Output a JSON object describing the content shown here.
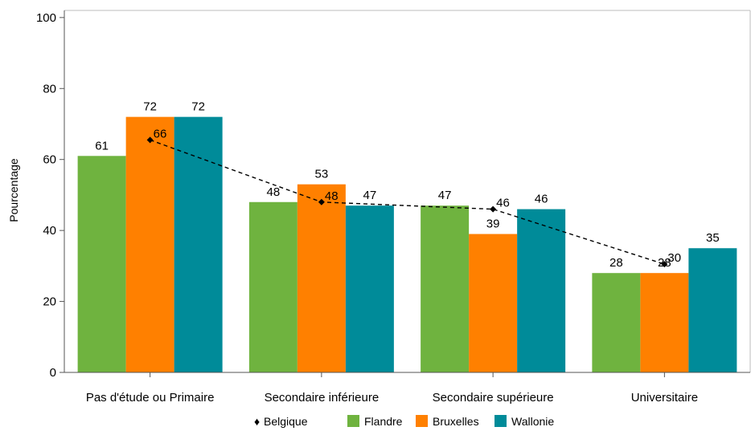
{
  "chart_data": {
    "type": "bar",
    "categories": [
      "Pas d'étude ou Primaire",
      "Secondaire inférieure",
      "Secondaire supérieure",
      "Universitaire"
    ],
    "series": [
      {
        "name": "Flandre",
        "color": "#6fb33f",
        "values": [
          61,
          48,
          47,
          28
        ],
        "labels": [
          "61",
          "48",
          "47",
          "28"
        ]
      },
      {
        "name": "Bruxelles",
        "color": "#ff8000",
        "values": [
          72,
          53,
          39,
          28
        ],
        "labels": [
          "72",
          "53",
          "39",
          "28"
        ]
      },
      {
        "name": "Wallonie",
        "color": "#008b99",
        "values": [
          72,
          47,
          46,
          35
        ],
        "labels": [
          "72",
          "47",
          "46",
          "35"
        ]
      }
    ],
    "line_series": {
      "name": "Belgique",
      "marker": "♦",
      "values": [
        65.5,
        48,
        46,
        30.5
      ],
      "labels": [
        "66",
        "48",
        "46",
        "30"
      ]
    },
    "ylabel": "Pourcentage",
    "ylim": [
      0,
      100
    ],
    "yticks": [
      "0",
      "20",
      "40",
      "60",
      "80",
      "100"
    ],
    "grid": false,
    "legend_position": "bottom"
  }
}
